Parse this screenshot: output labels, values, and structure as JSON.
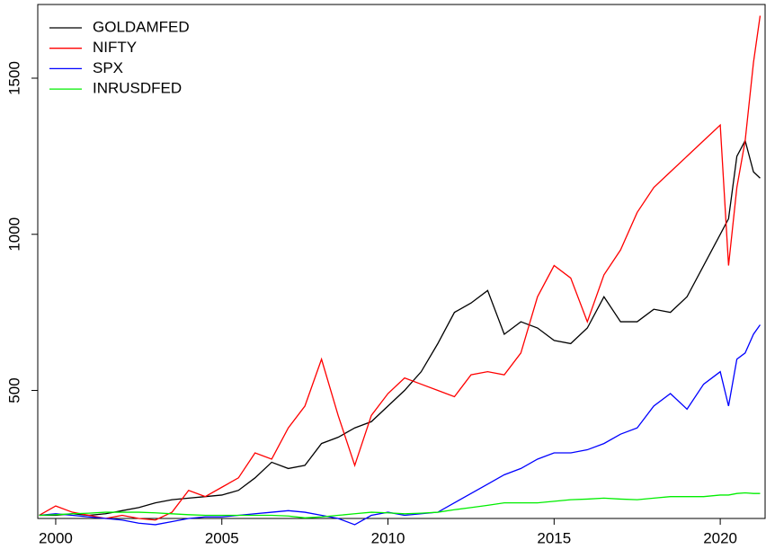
{
  "chart_data": {
    "type": "line",
    "x": [
      1999.5,
      2000,
      2000.5,
      2001,
      2001.5,
      2002,
      2002.5,
      2003,
      2003.5,
      2004,
      2004.5,
      2005,
      2005.5,
      2006,
      2006.5,
      2007,
      2007.5,
      2008,
      2008.5,
      2009,
      2009.5,
      2010,
      2010.5,
      2011,
      2011.5,
      2012,
      2012.5,
      2013,
      2013.5,
      2014,
      2014.5,
      2015,
      2015.5,
      2016,
      2016.5,
      2017,
      2017.5,
      2018,
      2018.5,
      2019,
      2019.5,
      2020,
      2020.25,
      2020.5,
      2020.75,
      2021,
      2021.2
    ],
    "series": [
      {
        "name": "GOLDAMFED",
        "color": "#000000",
        "values": [
          100,
          100,
          105,
          100,
          105,
          115,
          125,
          140,
          150,
          155,
          160,
          165,
          180,
          220,
          270,
          250,
          260,
          330,
          350,
          380,
          400,
          450,
          500,
          560,
          650,
          750,
          780,
          820,
          680,
          720,
          700,
          660,
          650,
          700,
          800,
          720,
          720,
          760,
          750,
          800,
          900,
          1000,
          1050,
          1250,
          1300,
          1200,
          1180
        ]
      },
      {
        "name": "NIFTY",
        "color": "#ff0000",
        "values": [
          100,
          130,
          110,
          100,
          90,
          100,
          90,
          85,
          110,
          180,
          160,
          190,
          220,
          300,
          280,
          380,
          450,
          600,
          420,
          260,
          420,
          490,
          540,
          520,
          500,
          480,
          550,
          560,
          550,
          620,
          800,
          900,
          860,
          720,
          870,
          950,
          1070,
          1150,
          1200,
          1250,
          1300,
          1350,
          900,
          1150,
          1300,
          1550,
          1700
        ]
      },
      {
        "name": "SPX",
        "color": "#0000ff",
        "values": [
          100,
          105,
          100,
          95,
          90,
          85,
          75,
          70,
          80,
          90,
          95,
          95,
          100,
          105,
          110,
          115,
          110,
          100,
          90,
          70,
          100,
          110,
          100,
          105,
          110,
          140,
          170,
          200,
          230,
          250,
          280,
          300,
          300,
          310,
          330,
          360,
          380,
          450,
          490,
          440,
          520,
          560,
          450,
          600,
          620,
          680,
          710
        ]
      },
      {
        "name": "INRUSDFED",
        "color": "#00ee00",
        "values": [
          100,
          102,
          105,
          107,
          110,
          110,
          110,
          108,
          105,
          102,
          100,
          100,
          100,
          100,
          100,
          98,
          92,
          95,
          100,
          105,
          110,
          108,
          105,
          107,
          110,
          118,
          125,
          132,
          140,
          140,
          140,
          145,
          150,
          152,
          155,
          152,
          150,
          155,
          160,
          160,
          160,
          165,
          165,
          170,
          172,
          170,
          170
        ]
      }
    ],
    "xlim": [
      1999.46,
      2021.35
    ],
    "xticks": [
      2000,
      2005,
      2010,
      2015,
      2020
    ],
    "ylim": [
      90,
      1736
    ],
    "yticks": [
      500,
      1000,
      1500
    ],
    "legend": "top-left"
  }
}
